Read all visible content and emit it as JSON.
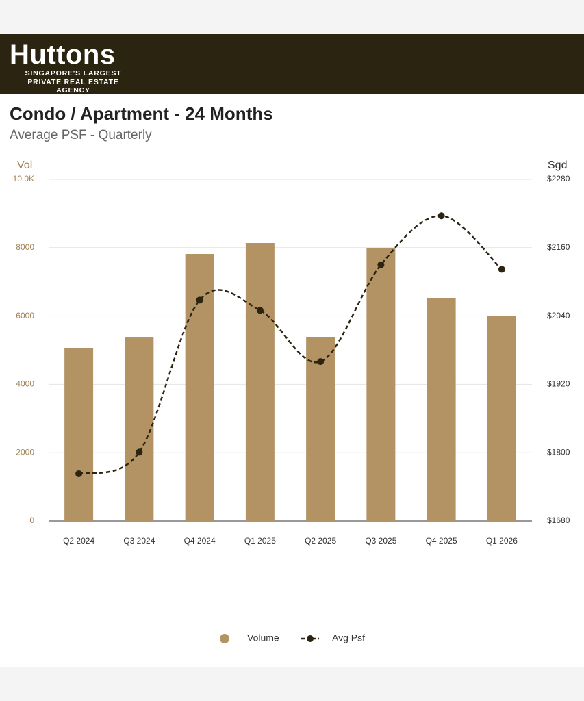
{
  "header": {
    "brand": "Huttons",
    "tagline": [
      "SINGAPORE'S LARGEST",
      "PRIVATE REAL ESTATE AGENCY"
    ]
  },
  "chart_data": {
    "type": "bar",
    "title": "Condo / Apartment - 24 Months",
    "subtitle": "Average PSF - Quarterly",
    "y_label": "Vol",
    "y2_label": "Sgd",
    "categories": [
      "Q2 2024",
      "Q3 2024",
      "Q4 2024",
      "Q1 2025",
      "Q2 2025",
      "Q3 2025",
      "Q4 2025",
      "Q1 2026"
    ],
    "series": [
      {
        "name": "Volume",
        "type": "bar",
        "color": "#b39264",
        "values": [
          5070,
          5370,
          7815,
          8136,
          5390,
          7976,
          6533,
          5992
        ]
      },
      {
        "name": "Avg Psf",
        "type": "line",
        "axis": "y2",
        "color": "#2a2410",
        "values": [
          1763,
          1801,
          2068,
          2050,
          1960,
          2130,
          2216,
          2122
        ]
      }
    ],
    "ylim": [
      0,
      10000
    ],
    "yticks": [
      0,
      2000,
      4000,
      6000,
      8000,
      {
        "value": 10000,
        "label": "10.0K"
      }
    ],
    "y2lim": [
      1680,
      2280
    ],
    "y2ticks": [
      {
        "value": 1680,
        "label": "$1680"
      },
      {
        "value": 1800,
        "label": "$1800"
      },
      {
        "value": 1920,
        "label": "$1920"
      },
      {
        "value": 2040,
        "label": "$2040"
      },
      {
        "value": 2160,
        "label": "$2160"
      },
      {
        "value": 2280,
        "label": "$2280"
      }
    ],
    "grid": true,
    "legend": "bottom"
  }
}
